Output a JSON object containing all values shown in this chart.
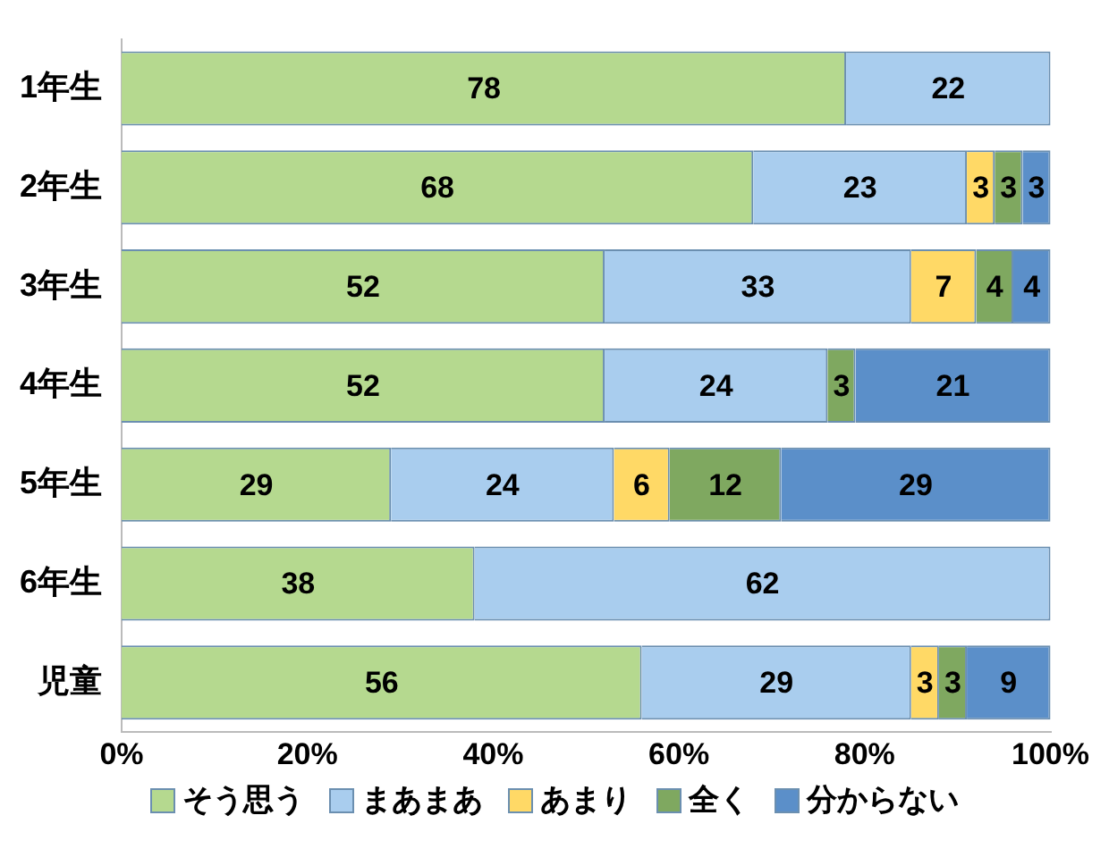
{
  "chart_data": {
    "type": "bar",
    "orientation": "horizontal",
    "stacked": true,
    "categories": [
      "1年生",
      "2年生",
      "3年生",
      "4年生",
      "5年生",
      "6年生",
      "児童"
    ],
    "series": [
      {
        "name": "そう思う",
        "color": "#b5d98f",
        "values": [
          78,
          68,
          52,
          52,
          29,
          38,
          56
        ],
        "value_labels": [
          "78",
          "68",
          "52",
          "52",
          "29",
          "38",
          "56"
        ]
      },
      {
        "name": "まあまあ",
        "color": "#a9cdee",
        "values": [
          22,
          23,
          33,
          24,
          24,
          62,
          29
        ],
        "value_labels": [
          "22",
          "23",
          "33",
          "24",
          "24",
          "62",
          "29"
        ]
      },
      {
        "name": "あまり",
        "color": "#ffd966",
        "values": [
          0,
          3,
          7,
          0,
          6,
          0,
          3
        ],
        "value_labels": [
          null,
          "3",
          "7",
          null,
          "6",
          null,
          "3"
        ]
      },
      {
        "name": "全く",
        "color": "#7fa860",
        "values": [
          0,
          3,
          4,
          3,
          12,
          0,
          3
        ],
        "value_labels": [
          null,
          "3",
          "4",
          "3",
          "12",
          null,
          "3"
        ]
      },
      {
        "name": "分からない",
        "color": "#5b8fc9",
        "values": [
          0,
          3,
          4,
          21,
          29,
          0,
          9
        ],
        "value_labels": [
          null,
          "3",
          "4",
          "21",
          "29",
          null,
          "9"
        ]
      }
    ],
    "xlim": [
      0,
      100
    ],
    "xticks": [
      {
        "value": 0,
        "label": "0%"
      },
      {
        "value": 20,
        "label": "20%"
      },
      {
        "value": 40,
        "label": "40%"
      },
      {
        "value": 60,
        "label": "60%"
      },
      {
        "value": 80,
        "label": "80%"
      },
      {
        "value": 100,
        "label": "100%"
      }
    ],
    "grid": false,
    "legend": "bottom"
  }
}
